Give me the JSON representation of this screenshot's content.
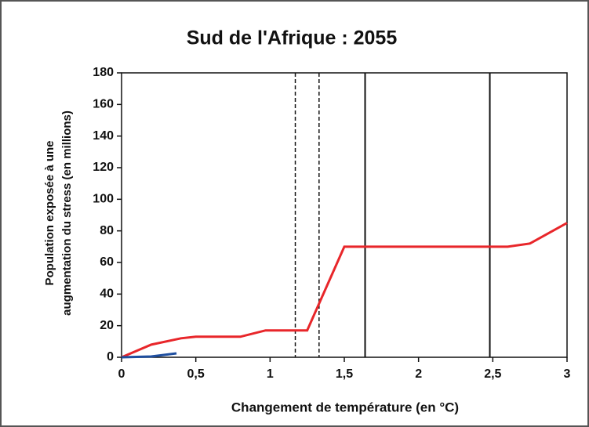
{
  "chart_data": {
    "type": "line",
    "title": "Sud de l'Afrique : 2055",
    "xlabel": "Changement de température (en °C)",
    "ylabel": [
      "Population exposée à une",
      "augmentation du stress (en millions)"
    ],
    "series": [
      {
        "color": "#e8262a",
        "x": [
          0,
          0.2,
          0.4,
          0.5,
          0.8,
          0.97,
          1.25,
          1.5,
          2.6,
          2.75,
          3
        ],
        "values": [
          0,
          8,
          12,
          13,
          13,
          17,
          17,
          70,
          70,
          72,
          85
        ]
      },
      {
        "color": "#1f4fa0",
        "x": [
          0,
          0.2,
          0.37
        ],
        "values": [
          0,
          0.5,
          2.5
        ]
      }
    ],
    "vlines": [
      {
        "x": 1.17,
        "style": "dashed"
      },
      {
        "x": 1.33,
        "style": "dashed"
      },
      {
        "x": 1.64,
        "style": "solid"
      },
      {
        "x": 2.48,
        "style": "solid"
      }
    ],
    "xlim": [
      0,
      3
    ],
    "ylim": [
      0,
      180
    ],
    "xticks": [
      0,
      {
        "value": 0.5,
        "label": "0,5"
      },
      1,
      {
        "value": 1.5,
        "label": "1,5"
      },
      2,
      {
        "value": 2.5,
        "label": "2,5"
      },
      3
    ],
    "yticks": [
      0,
      20,
      40,
      60,
      80,
      100,
      120,
      140,
      160,
      180
    ]
  }
}
